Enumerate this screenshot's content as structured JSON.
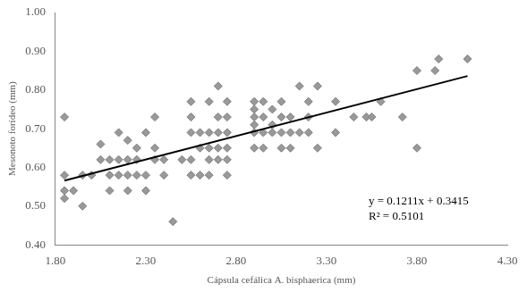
{
  "chart_data": {
    "type": "scatter",
    "x_label": "Cápsula cefálica A. bisphaerica (mm)",
    "y_label": "Mesonoto forídeo (mm)",
    "annotations": [
      "y = 0.1211x + 0.3415",
      "R² = 0.5101"
    ],
    "xlim": [
      1.8,
      4.3
    ],
    "xticks": [
      {
        "value": 1.8,
        "label": "1.80"
      },
      {
        "value": 2.3,
        "label": "2.30"
      },
      {
        "value": 2.8,
        "label": "2.80"
      },
      {
        "value": 3.3,
        "label": "3.30"
      },
      {
        "value": 3.8,
        "label": "3.80"
      },
      {
        "value": 4.3,
        "label": "4.30"
      }
    ],
    "ylim": [
      0.4,
      1.0
    ],
    "yticks": [
      {
        "value": 0.4,
        "label": "0.40"
      },
      {
        "value": 0.5,
        "label": "0.50"
      },
      {
        "value": 0.6,
        "label": "0.60"
      },
      {
        "value": 0.7,
        "label": "0.70"
      },
      {
        "value": 0.8,
        "label": "0.80"
      },
      {
        "value": 0.9,
        "label": "0.90"
      },
      {
        "value": 1.0,
        "label": "1.00"
      }
    ],
    "grid": false,
    "series": [
      {
        "type": "scatter",
        "marker": "diamond",
        "color": "#999999",
        "x": [
          1.85,
          1.85,
          1.85,
          1.85,
          1.9,
          1.95,
          1.95,
          2.0,
          2.05,
          2.05,
          2.1,
          2.1,
          2.1,
          2.15,
          2.15,
          2.15,
          2.2,
          2.2,
          2.2,
          2.2,
          2.25,
          2.25,
          2.25,
          2.3,
          2.3,
          2.3,
          2.35,
          2.35,
          2.35,
          2.4,
          2.4,
          2.45,
          2.5,
          2.55,
          2.55,
          2.55,
          2.55,
          2.55,
          2.6,
          2.6,
          2.6,
          2.65,
          2.65,
          2.65,
          2.65,
          2.65,
          2.7,
          2.7,
          2.7,
          2.7,
          2.7,
          2.75,
          2.75,
          2.75,
          2.75,
          2.75,
          2.75,
          2.9,
          2.9,
          2.9,
          2.9,
          2.9,
          2.9,
          2.95,
          2.95,
          2.95,
          2.95,
          3.0,
          3.0,
          3.0,
          3.05,
          3.05,
          3.05,
          3.05,
          3.1,
          3.1,
          3.1,
          3.15,
          3.15,
          3.2,
          3.2,
          3.2,
          3.25,
          3.25,
          3.35,
          3.35,
          3.45,
          3.52,
          3.55,
          3.6,
          3.72,
          3.8,
          3.8,
          3.9,
          3.92,
          4.08
        ],
        "values": [
          0.73,
          0.58,
          0.54,
          0.52,
          0.54,
          0.58,
          0.5,
          0.58,
          0.62,
          0.66,
          0.62,
          0.58,
          0.54,
          0.69,
          0.62,
          0.58,
          0.67,
          0.62,
          0.58,
          0.54,
          0.65,
          0.62,
          0.58,
          0.69,
          0.54,
          0.58,
          0.73,
          0.62,
          0.65,
          0.62,
          0.58,
          0.46,
          0.62,
          0.77,
          0.73,
          0.69,
          0.62,
          0.58,
          0.69,
          0.65,
          0.58,
          0.77,
          0.69,
          0.65,
          0.62,
          0.58,
          0.81,
          0.73,
          0.69,
          0.65,
          0.62,
          0.77,
          0.73,
          0.69,
          0.65,
          0.62,
          0.58,
          0.77,
          0.75,
          0.73,
          0.71,
          0.69,
          0.65,
          0.77,
          0.73,
          0.69,
          0.65,
          0.75,
          0.71,
          0.69,
          0.77,
          0.73,
          0.69,
          0.65,
          0.73,
          0.69,
          0.65,
          0.81,
          0.69,
          0.77,
          0.73,
          0.69,
          0.81,
          0.65,
          0.77,
          0.69,
          0.73,
          0.73,
          0.73,
          0.77,
          0.73,
          0.85,
          0.65,
          0.85,
          0.88,
          0.88
        ]
      },
      {
        "type": "line",
        "line_style": "solid",
        "color": "#000000",
        "x": [
          1.85,
          4.08
        ],
        "values": [
          0.566,
          0.836
        ]
      }
    ]
  }
}
